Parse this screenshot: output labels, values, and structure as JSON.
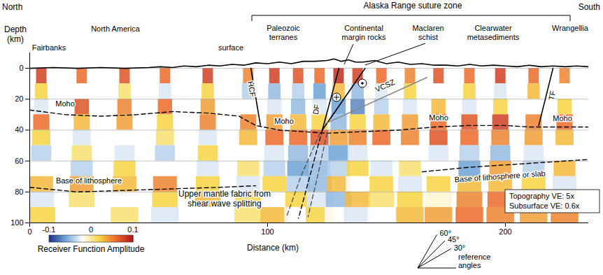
{
  "chart_data": {
    "type": "cross-section",
    "x_label": "Distance (km)",
    "y_label": "Depth (km)",
    "xlim": [
      0,
      235
    ],
    "xticks": [
      0,
      100,
      200
    ],
    "ylim": [
      -10,
      100
    ],
    "yticks": [
      0,
      20,
      40,
      60,
      80,
      100
    ],
    "grid": true,
    "receiver_functions": {
      "stations_x": [
        5,
        22,
        40,
        57,
        75,
        92,
        103,
        113,
        122,
        130,
        138,
        148,
        160,
        172,
        185,
        198,
        212,
        225
      ],
      "depths": [
        5,
        15,
        25,
        35,
        45,
        55,
        65,
        75,
        85,
        95
      ],
      "values": [
        [
          0.08,
          0.02,
          -0.03,
          0.06,
          0.02,
          -0.04,
          -0.02,
          0.03,
          -0.03,
          0.02
        ],
        [
          0.06,
          -0.02,
          0.07,
          0.03,
          -0.03,
          0.01,
          -0.04,
          0.04,
          0.01,
          -0.02
        ],
        [
          0.07,
          0.01,
          0.05,
          0.04,
          -0.02,
          -0.03,
          0.02,
          0.03,
          -0.02,
          0.01
        ],
        [
          0.06,
          -0.03,
          0.06,
          0.02,
          0.01,
          -0.04,
          -0.02,
          0.05,
          0.02,
          -0.03
        ],
        [
          0.08,
          0.02,
          0.04,
          0.05,
          -0.03,
          0.02,
          -0.03,
          0.02,
          0.03,
          -0.02
        ],
        [
          0.05,
          -0.04,
          -0.02,
          0.05,
          0.03,
          -0.02,
          0.01,
          -0.03,
          0.02,
          0.01
        ],
        [
          0.08,
          -0.05,
          -0.03,
          0.04,
          0.06,
          -0.03,
          -0.04,
          0.02,
          -0.02,
          0.03
        ],
        [
          0.07,
          -0.04,
          -0.05,
          0.03,
          0.06,
          -0.05,
          -0.06,
          -0.04,
          0.02,
          -0.02
        ],
        [
          0.06,
          -0.06,
          -0.03,
          0.02,
          0.07,
          -0.04,
          -0.05,
          -0.05,
          -0.03,
          0.02
        ],
        [
          0.09,
          0.03,
          -0.06,
          -0.05,
          0.04,
          -0.06,
          -0.04,
          0.03,
          -0.05,
          -0.02
        ],
        [
          0.08,
          -0.05,
          -0.07,
          0.02,
          0.05,
          -0.03,
          0.02,
          -0.02,
          0.03,
          -0.03
        ],
        [
          0.06,
          -0.03,
          -0.04,
          0.03,
          0.06,
          -0.02,
          -0.03,
          0.02,
          0.01,
          -0.02
        ],
        [
          0.05,
          0.02,
          -0.03,
          0.04,
          0.05,
          -0.02,
          0.01,
          -0.03,
          0.02,
          0.03
        ],
        [
          0.07,
          -0.02,
          0.03,
          0.06,
          0.07,
          -0.03,
          -0.02,
          0.02,
          -0.01,
          0.04
        ],
        [
          0.06,
          0.02,
          -0.03,
          0.07,
          0.06,
          -0.04,
          -0.06,
          0.03,
          0.05,
          0.06
        ],
        [
          0.08,
          -0.03,
          0.02,
          0.08,
          0.05,
          -0.05,
          0.04,
          0.03,
          0.06,
          0.05
        ],
        [
          0.06,
          0.03,
          -0.02,
          0.05,
          0.04,
          -0.03,
          -0.04,
          0.02,
          0.05,
          0.04
        ],
        [
          0.05,
          -0.02,
          0.02,
          0.06,
          0.03,
          -0.02,
          0.03,
          -0.03,
          0.04,
          0.05
        ]
      ]
    },
    "colorbar": {
      "label": "Receiver Function Amplitude",
      "range": [
        -0.1,
        0.1
      ],
      "ticks": [
        -0.1,
        0,
        0.1
      ]
    },
    "series": [
      {
        "x": [
          0,
          10,
          20,
          30,
          40,
          50,
          55,
          60,
          65,
          70,
          75,
          80,
          85,
          90,
          95,
          100,
          105,
          110,
          115,
          120,
          125,
          128,
          131,
          134,
          137,
          140,
          145,
          150,
          155,
          160,
          165,
          170,
          175,
          180,
          185,
          190,
          195,
          200,
          205,
          210,
          215,
          220,
          225,
          230,
          235
        ],
        "y": [
          0,
          -0.5,
          0,
          -0.5,
          0,
          -0.5,
          -1,
          -0.5,
          -1.5,
          -1,
          -2,
          -1.5,
          -2.5,
          -2,
          -3.5,
          -3,
          -4,
          -3,
          -4.5,
          -4.5,
          -5,
          -6,
          -4.5,
          -5.5,
          -4,
          -4,
          -5,
          -3,
          -4,
          -2.5,
          -3,
          -2,
          -2,
          -1.5,
          -2.5,
          -1.5,
          -2,
          -1.5,
          -1,
          -2,
          -1,
          -1.5,
          -1,
          -1.5,
          -1
        ],
        "color": "#000000",
        "line_style": "solid"
      },
      {
        "x": [
          0,
          15,
          30,
          45,
          60,
          75,
          88,
          95,
          105,
          115,
          125,
          140,
          155,
          170,
          185,
          200,
          210,
          220,
          235
        ],
        "y": [
          27,
          30,
          31,
          30,
          28,
          29,
          31,
          37,
          40,
          41,
          42,
          41,
          40,
          38,
          37,
          37,
          38,
          38,
          38
        ],
        "color": "#000000",
        "line_style": "dashed"
      },
      {
        "x": [
          0,
          20,
          40,
          60,
          80,
          95
        ],
        "y": [
          77,
          80,
          79,
          78,
          77,
          76
        ],
        "color": "#000000",
        "line_style": "dashed"
      },
      {
        "x": [
          165,
          185,
          205,
          235
        ],
        "y": [
          67,
          64,
          62,
          59
        ],
        "color": "#000000",
        "line_style": "dashed"
      },
      {
        "x": [
          93,
          97
        ],
        "y": [
          0,
          37
        ],
        "color": "#000000",
        "line_style": "solid"
      },
      {
        "x": [
          130,
          123
        ],
        "y": [
          0,
          40
        ],
        "color": "#000000",
        "line_style": "solid"
      },
      {
        "x": [
          123,
          141
        ],
        "y": [
          40,
          0
        ],
        "color": "#000000",
        "line_style": "solid"
      },
      {
        "x": [
          123,
          113
        ],
        "y": [
          40,
          97
        ],
        "color": "#000000",
        "line_style": "dashed"
      },
      {
        "x": [
          124,
          167
        ],
        "y": [
          36,
          6
        ],
        "color": "#888888",
        "line_style": "solid"
      },
      {
        "x": [
          220,
          214
        ],
        "y": [
          0,
          37
        ],
        "color": "#000000",
        "line_style": "solid"
      },
      {
        "x": [
          122,
          114,
          108
        ],
        "y": [
          42,
          70,
          96
        ],
        "color": "#555555",
        "line_style": "dashed"
      },
      {
        "x": [
          125,
          121,
          117
        ],
        "y": [
          42,
          70,
          96
        ],
        "color": "#555555",
        "line_style": "dashed"
      }
    ],
    "annotations": [
      "North",
      "South",
      "Alaska Range suture zone",
      "Fairbanks",
      "North America",
      "surface",
      "Paleozoic terranes",
      "Continental margin rocks",
      "Maclaren schist",
      "Clearwater metasediments",
      "Wrangellia",
      "Moho",
      "Moho",
      "Moho",
      "Moho",
      "HCF",
      "DF",
      "VCSZ",
      "TF",
      "Base of lithosphere",
      "Base of lithosphere or slab",
      "Upper mantle fabric from shear wave splitting",
      "Topography VE: 5x",
      "Subsurface VE: 0.6x",
      "reference angles"
    ],
    "reference_angles": [
      {
        "value": 60,
        "label": "60°"
      },
      {
        "value": 45,
        "label": "45°"
      },
      {
        "value": 30,
        "label": "30°"
      }
    ]
  }
}
